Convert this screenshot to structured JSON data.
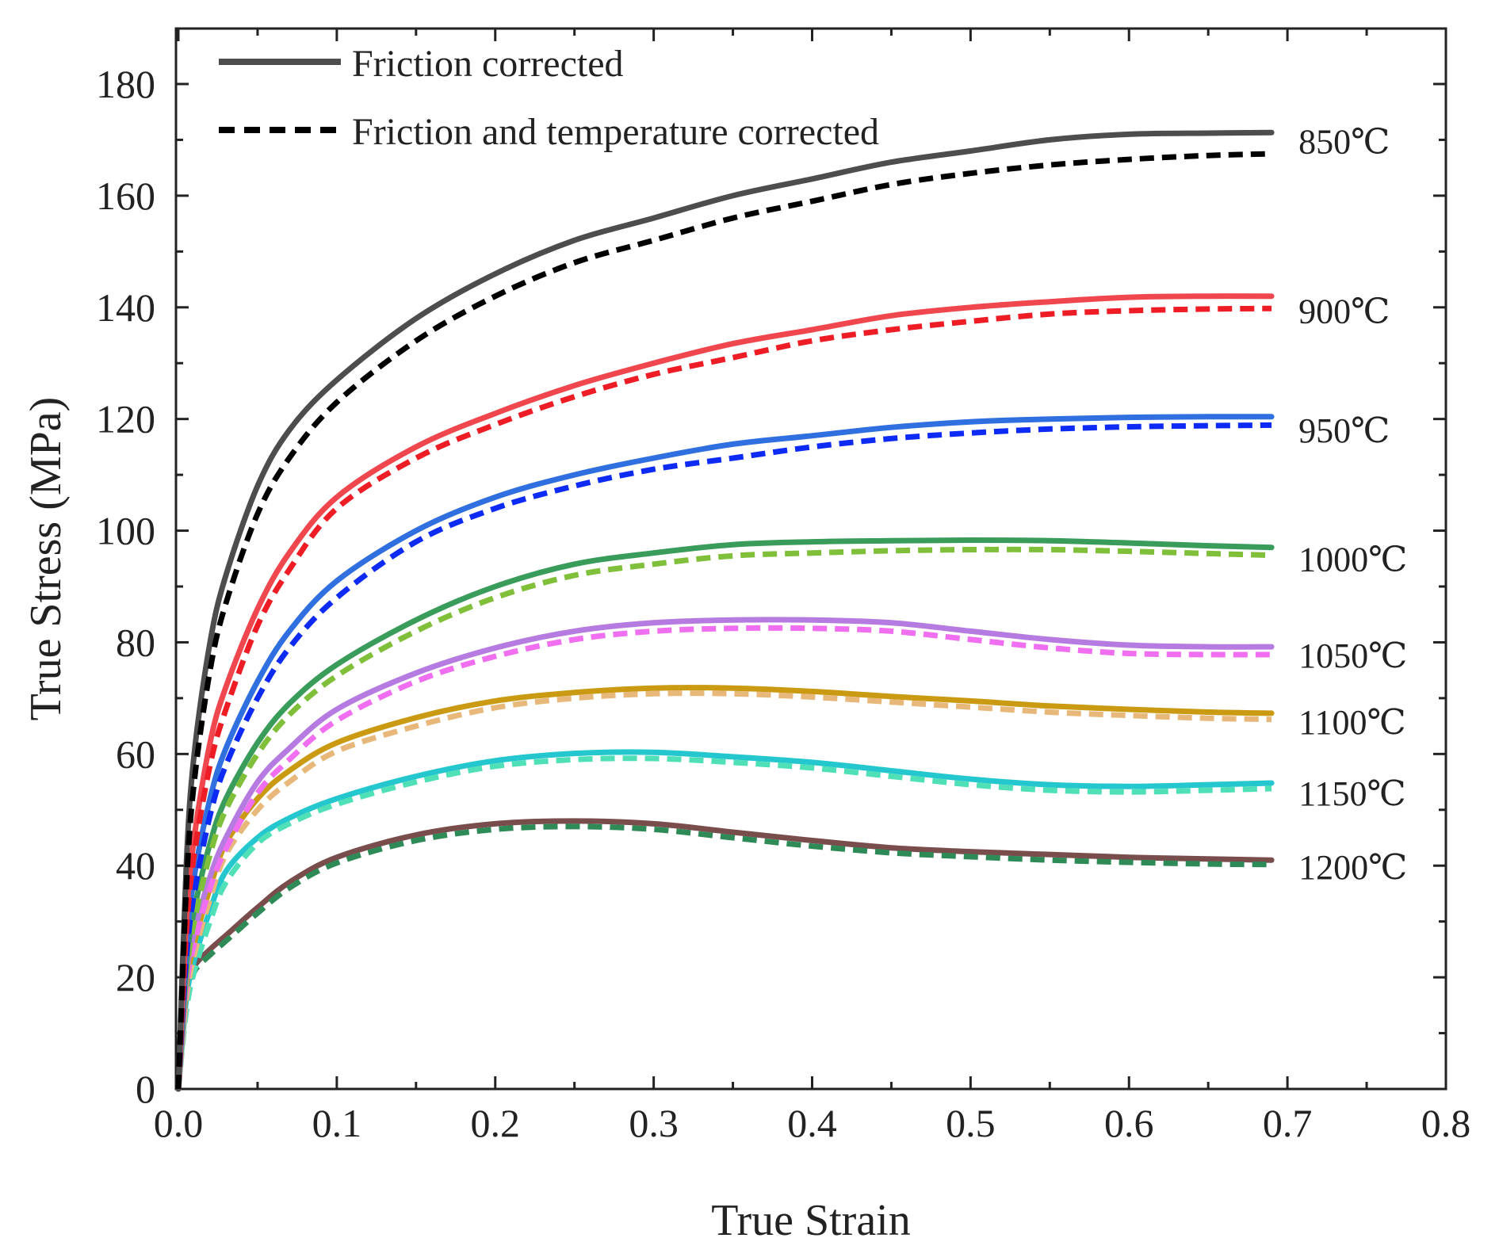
{
  "chart_data": {
    "type": "line",
    "title": "",
    "xlabel": "True Strain",
    "ylabel": "True Stress (MPa)",
    "xlim": [
      0.0,
      0.8
    ],
    "ylim": [
      0,
      190
    ],
    "xticks": [
      0.0,
      0.1,
      0.2,
      0.3,
      0.4,
      0.5,
      0.6,
      0.7,
      0.8
    ],
    "xtick_labels": [
      "0.0",
      "0.1",
      "0.2",
      "0.3",
      "0.4",
      "0.5",
      "0.6",
      "0.7",
      "0.8"
    ],
    "yticks": [
      0,
      20,
      40,
      60,
      80,
      100,
      120,
      140,
      160,
      180
    ],
    "ytick_labels": [
      "0",
      "20",
      "40",
      "60",
      "80",
      "100",
      "120",
      "140",
      "160",
      "180"
    ],
    "grid": false,
    "legend_position": "top-left",
    "legend": [
      {
        "label": "Friction corrected",
        "style": "solid",
        "color": "#4d4d4d"
      },
      {
        "label": "Friction and temperature corrected",
        "style": "dashed",
        "color": "#000000"
      }
    ],
    "series": [
      {
        "temperature": "850℃",
        "color_solid": "#4d4d4d",
        "color_dashed": "#000000",
        "friction_corrected": {
          "x": [
            0,
            0.005,
            0.01,
            0.02,
            0.03,
            0.05,
            0.07,
            0.1,
            0.15,
            0.2,
            0.25,
            0.3,
            0.35,
            0.4,
            0.45,
            0.5,
            0.55,
            0.6,
            0.65,
            0.69
          ],
          "y": [
            0,
            40,
            60,
            80,
            92,
            108,
            118,
            127,
            138,
            146,
            152,
            156,
            160,
            163,
            166,
            168,
            170,
            171,
            171.2,
            171.3
          ]
        },
        "friction_temperature_corrected": {
          "x": [
            0,
            0.005,
            0.01,
            0.02,
            0.03,
            0.05,
            0.07,
            0.1,
            0.15,
            0.2,
            0.25,
            0.3,
            0.35,
            0.4,
            0.45,
            0.5,
            0.55,
            0.6,
            0.65,
            0.69
          ],
          "y": [
            0,
            36,
            55,
            75,
            87,
            103,
            113,
            123,
            134,
            142,
            148,
            152,
            156,
            159,
            162,
            164,
            165.5,
            166.5,
            167.2,
            167.5
          ]
        }
      },
      {
        "temperature": "900℃",
        "color_solid": "#f0474e",
        "color_dashed": "#ee1c25",
        "friction_corrected": {
          "x": [
            0,
            0.005,
            0.01,
            0.02,
            0.03,
            0.05,
            0.07,
            0.1,
            0.15,
            0.2,
            0.25,
            0.3,
            0.35,
            0.4,
            0.45,
            0.5,
            0.55,
            0.6,
            0.65,
            0.69
          ],
          "y": [
            0,
            30,
            45,
            62,
            72,
            86,
            96,
            106,
            115,
            121,
            126,
            130,
            133.5,
            136,
            138.5,
            140,
            141,
            141.8,
            142,
            142
          ]
        },
        "friction_temperature_corrected": {
          "x": [
            0,
            0.005,
            0.01,
            0.02,
            0.03,
            0.05,
            0.07,
            0.1,
            0.15,
            0.2,
            0.25,
            0.3,
            0.35,
            0.4,
            0.45,
            0.5,
            0.55,
            0.6,
            0.65,
            0.69
          ],
          "y": [
            0,
            28,
            42,
            58,
            68,
            83,
            93,
            104,
            113,
            119,
            124,
            128,
            131,
            134,
            136,
            137.5,
            138.8,
            139.4,
            139.7,
            139.8
          ]
        }
      },
      {
        "temperature": "950℃",
        "color_solid": "#2f6fe0",
        "color_dashed": "#0d2bf5",
        "friction_corrected": {
          "x": [
            0,
            0.005,
            0.01,
            0.02,
            0.03,
            0.05,
            0.07,
            0.1,
            0.15,
            0.2,
            0.25,
            0.3,
            0.35,
            0.4,
            0.45,
            0.5,
            0.55,
            0.6,
            0.65,
            0.69
          ],
          "y": [
            0,
            25,
            38,
            52,
            61,
            73,
            82,
            91,
            100,
            106,
            110,
            113,
            115.5,
            117,
            118.5,
            119.5,
            120,
            120.3,
            120.4,
            120.4
          ]
        },
        "friction_temperature_corrected": {
          "x": [
            0,
            0.005,
            0.01,
            0.02,
            0.03,
            0.05,
            0.07,
            0.1,
            0.15,
            0.2,
            0.25,
            0.3,
            0.35,
            0.4,
            0.45,
            0.5,
            0.55,
            0.6,
            0.65,
            0.69
          ],
          "y": [
            0,
            23,
            35,
            49,
            58,
            70,
            79,
            88,
            98,
            104,
            108,
            111,
            113,
            115,
            116.5,
            117.5,
            118.2,
            118.6,
            118.8,
            118.9
          ]
        }
      },
      {
        "temperature": "1000℃",
        "color_solid": "#3a9c5b",
        "color_dashed": "#7fbf3a",
        "friction_corrected": {
          "x": [
            0,
            0.005,
            0.01,
            0.02,
            0.03,
            0.05,
            0.07,
            0.1,
            0.15,
            0.2,
            0.25,
            0.3,
            0.35,
            0.4,
            0.45,
            0.5,
            0.55,
            0.6,
            0.65,
            0.69
          ],
          "y": [
            0,
            22,
            32,
            44,
            52,
            62,
            69,
            76,
            84,
            90,
            94,
            96,
            97.5,
            98,
            98.2,
            98.3,
            98.2,
            97.8,
            97.3,
            97
          ]
        },
        "friction_temperature_corrected": {
          "x": [
            0,
            0.005,
            0.01,
            0.02,
            0.03,
            0.05,
            0.07,
            0.1,
            0.15,
            0.2,
            0.25,
            0.3,
            0.35,
            0.4,
            0.45,
            0.5,
            0.55,
            0.6,
            0.65,
            0.69
          ],
          "y": [
            0,
            20,
            30,
            42,
            50,
            60,
            67,
            74,
            82,
            88,
            92,
            94,
            95.5,
            96,
            96.4,
            96.6,
            96.6,
            96.3,
            95.9,
            95.6
          ]
        }
      },
      {
        "temperature": "1050℃",
        "color_solid": "#b57be0",
        "color_dashed": "#f06ef0",
        "friction_corrected": {
          "x": [
            0,
            0.005,
            0.01,
            0.02,
            0.03,
            0.05,
            0.07,
            0.1,
            0.15,
            0.2,
            0.25,
            0.3,
            0.35,
            0.4,
            0.45,
            0.5,
            0.55,
            0.6,
            0.65,
            0.69
          ],
          "y": [
            0,
            20,
            28,
            38,
            45,
            55,
            61,
            68,
            74.5,
            79,
            82,
            83.5,
            84,
            84,
            83.5,
            82,
            80.5,
            79.5,
            79.2,
            79.2
          ]
        },
        "friction_temperature_corrected": {
          "x": [
            0,
            0.005,
            0.01,
            0.02,
            0.03,
            0.05,
            0.07,
            0.1,
            0.15,
            0.2,
            0.25,
            0.3,
            0.35,
            0.4,
            0.45,
            0.5,
            0.55,
            0.6,
            0.65,
            0.69
          ],
          "y": [
            0,
            18,
            26,
            36,
            43,
            53,
            59,
            66,
            73,
            77.5,
            80.5,
            82,
            82.5,
            82.5,
            82,
            80.5,
            79,
            78,
            77.8,
            77.8
          ]
        }
      },
      {
        "temperature": "1100℃",
        "color_solid": "#c99a12",
        "color_dashed": "#e8b87a",
        "friction_corrected": {
          "x": [
            0,
            0.005,
            0.01,
            0.02,
            0.03,
            0.05,
            0.07,
            0.1,
            0.15,
            0.2,
            0.25,
            0.3,
            0.35,
            0.4,
            0.45,
            0.5,
            0.55,
            0.6,
            0.65,
            0.69
          ],
          "y": [
            0,
            18,
            26,
            36,
            44,
            52,
            57,
            62,
            66.5,
            69.5,
            71,
            71.8,
            71.8,
            71.2,
            70.3,
            69.5,
            68.6,
            68,
            67.5,
            67.3
          ]
        },
        "friction_temperature_corrected": {
          "x": [
            0,
            0.005,
            0.01,
            0.02,
            0.03,
            0.05,
            0.07,
            0.1,
            0.15,
            0.2,
            0.25,
            0.3,
            0.35,
            0.4,
            0.45,
            0.5,
            0.55,
            0.6,
            0.65,
            0.69
          ],
          "y": [
            0,
            16,
            24,
            34,
            42,
            50,
            55,
            60.5,
            65,
            68.3,
            70,
            70.8,
            70.8,
            70.2,
            69.3,
            68.4,
            67.5,
            66.9,
            66.4,
            66.2
          ]
        }
      },
      {
        "temperature": "1150℃",
        "color_solid": "#25c7cf",
        "color_dashed": "#4fe0b8",
        "friction_corrected": {
          "x": [
            0,
            0.005,
            0.01,
            0.02,
            0.03,
            0.05,
            0.07,
            0.1,
            0.15,
            0.2,
            0.25,
            0.3,
            0.35,
            0.4,
            0.45,
            0.5,
            0.55,
            0.6,
            0.65,
            0.69
          ],
          "y": [
            0,
            16,
            23,
            32,
            39,
            45,
            48.5,
            52,
            56,
            58.8,
            60.1,
            60.3,
            59.5,
            58.5,
            57,
            55.5,
            54.5,
            54.2,
            54.5,
            54.8
          ]
        },
        "friction_temperature_corrected": {
          "x": [
            0,
            0.005,
            0.01,
            0.02,
            0.03,
            0.05,
            0.07,
            0.1,
            0.15,
            0.2,
            0.25,
            0.3,
            0.35,
            0.4,
            0.45,
            0.5,
            0.55,
            0.6,
            0.65,
            0.69
          ],
          "y": [
            0,
            14,
            21,
            30,
            37,
            44,
            47.5,
            51,
            55,
            57.8,
            59,
            59.2,
            58.5,
            57.5,
            56,
            54.5,
            53.5,
            53.2,
            53.5,
            53.8
          ]
        }
      },
      {
        "temperature": "1200℃",
        "color_solid": "#7a4d4d",
        "color_dashed": "#2e8b57",
        "friction_corrected": {
          "x": [
            0,
            0.005,
            0.01,
            0.02,
            0.03,
            0.05,
            0.07,
            0.1,
            0.15,
            0.2,
            0.25,
            0.3,
            0.35,
            0.4,
            0.45,
            0.5,
            0.55,
            0.6,
            0.65,
            0.69
          ],
          "y": [
            0,
            18,
            22,
            25,
            27.5,
            32.5,
            37,
            41.5,
            45.5,
            47.5,
            48,
            47.5,
            46,
            44.5,
            43.2,
            42.5,
            42,
            41.5,
            41.2,
            41
          ]
        },
        "friction_temperature_corrected": {
          "x": [
            0,
            0.005,
            0.01,
            0.02,
            0.03,
            0.05,
            0.07,
            0.1,
            0.15,
            0.2,
            0.25,
            0.3,
            0.35,
            0.4,
            0.45,
            0.5,
            0.55,
            0.6,
            0.65,
            0.69
          ],
          "y": [
            0,
            16,
            21,
            24,
            26.5,
            31.5,
            36,
            40.5,
            44.5,
            46.5,
            47,
            46.5,
            45,
            43.5,
            42.3,
            41.6,
            41,
            40.6,
            40.3,
            40.2
          ]
        }
      }
    ]
  }
}
